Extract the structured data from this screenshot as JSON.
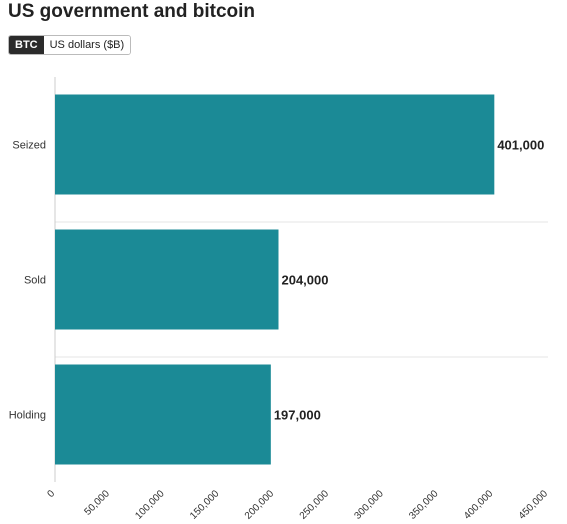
{
  "header": {
    "title": "US government and bitcoin",
    "toggle": [
      {
        "label": "BTC",
        "active": true
      },
      {
        "label": "US dollars ($B)",
        "active": false
      }
    ]
  },
  "colors": {
    "bar": "#1b8a96",
    "grid": "#e6e6e6",
    "axis": "#cccccc"
  },
  "chart_data": {
    "type": "bar",
    "orientation": "horizontal",
    "title": "US government and bitcoin",
    "categories": [
      "Seized",
      "Sold",
      "Holding"
    ],
    "values": [
      401000,
      204000,
      197000
    ],
    "value_labels": [
      "401,000",
      "204,000",
      "197,000"
    ],
    "xlim": [
      0,
      450000
    ],
    "xticks": [
      0,
      50000,
      100000,
      150000,
      200000,
      250000,
      300000,
      350000,
      400000,
      450000
    ],
    "xtick_labels": [
      "0",
      "50,000",
      "100,000",
      "150,000",
      "200,000",
      "250,000",
      "300,000",
      "350,000",
      "400,000",
      "450,000"
    ],
    "grid": true
  }
}
